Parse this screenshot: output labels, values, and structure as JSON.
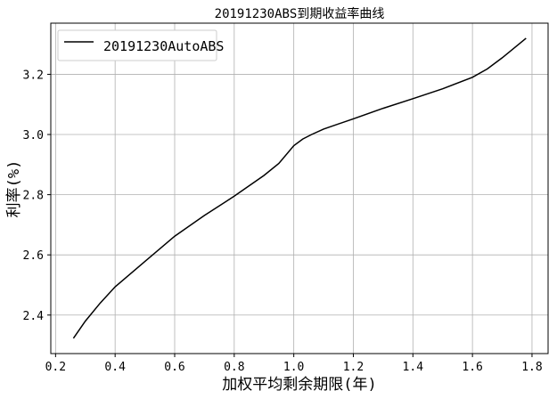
{
  "chart_data": {
    "type": "line",
    "title": "20191230ABS到期收益率曲线",
    "xlabel": "加权平均剩余期限(年)",
    "ylabel": "利率(%)",
    "xlim": [
      0.184,
      1.854
    ],
    "ylim": [
      2.272,
      3.37
    ],
    "xticks": [
      0.2,
      0.4,
      0.6,
      0.8,
      1.0,
      1.2,
      1.4,
      1.6,
      1.8
    ],
    "xtick_labels": [
      "0.2",
      "0.4",
      "0.6",
      "0.8",
      "1.0",
      "1.2",
      "1.4",
      "1.6",
      "1.8"
    ],
    "yticks": [
      2.4,
      2.6,
      2.8,
      3.0,
      3.2
    ],
    "ytick_labels": [
      "2.4",
      "2.6",
      "2.8",
      "3.0",
      "3.2"
    ],
    "grid": true,
    "legend_position": "top-left",
    "series": [
      {
        "name": "20191230AutoABS",
        "color": "#000000",
        "x": [
          0.26,
          0.3,
          0.35,
          0.4,
          0.5,
          0.6,
          0.7,
          0.8,
          0.9,
          0.95,
          1.0,
          1.03,
          1.06,
          1.1,
          1.2,
          1.3,
          1.4,
          1.5,
          1.6,
          1.65,
          1.7,
          1.78
        ],
        "y": [
          2.323,
          2.38,
          2.44,
          2.494,
          2.578,
          2.662,
          2.731,
          2.795,
          2.864,
          2.904,
          2.963,
          2.985,
          3.0,
          3.018,
          3.052,
          3.087,
          3.119,
          3.152,
          3.19,
          3.218,
          3.255,
          3.32
        ]
      }
    ]
  }
}
